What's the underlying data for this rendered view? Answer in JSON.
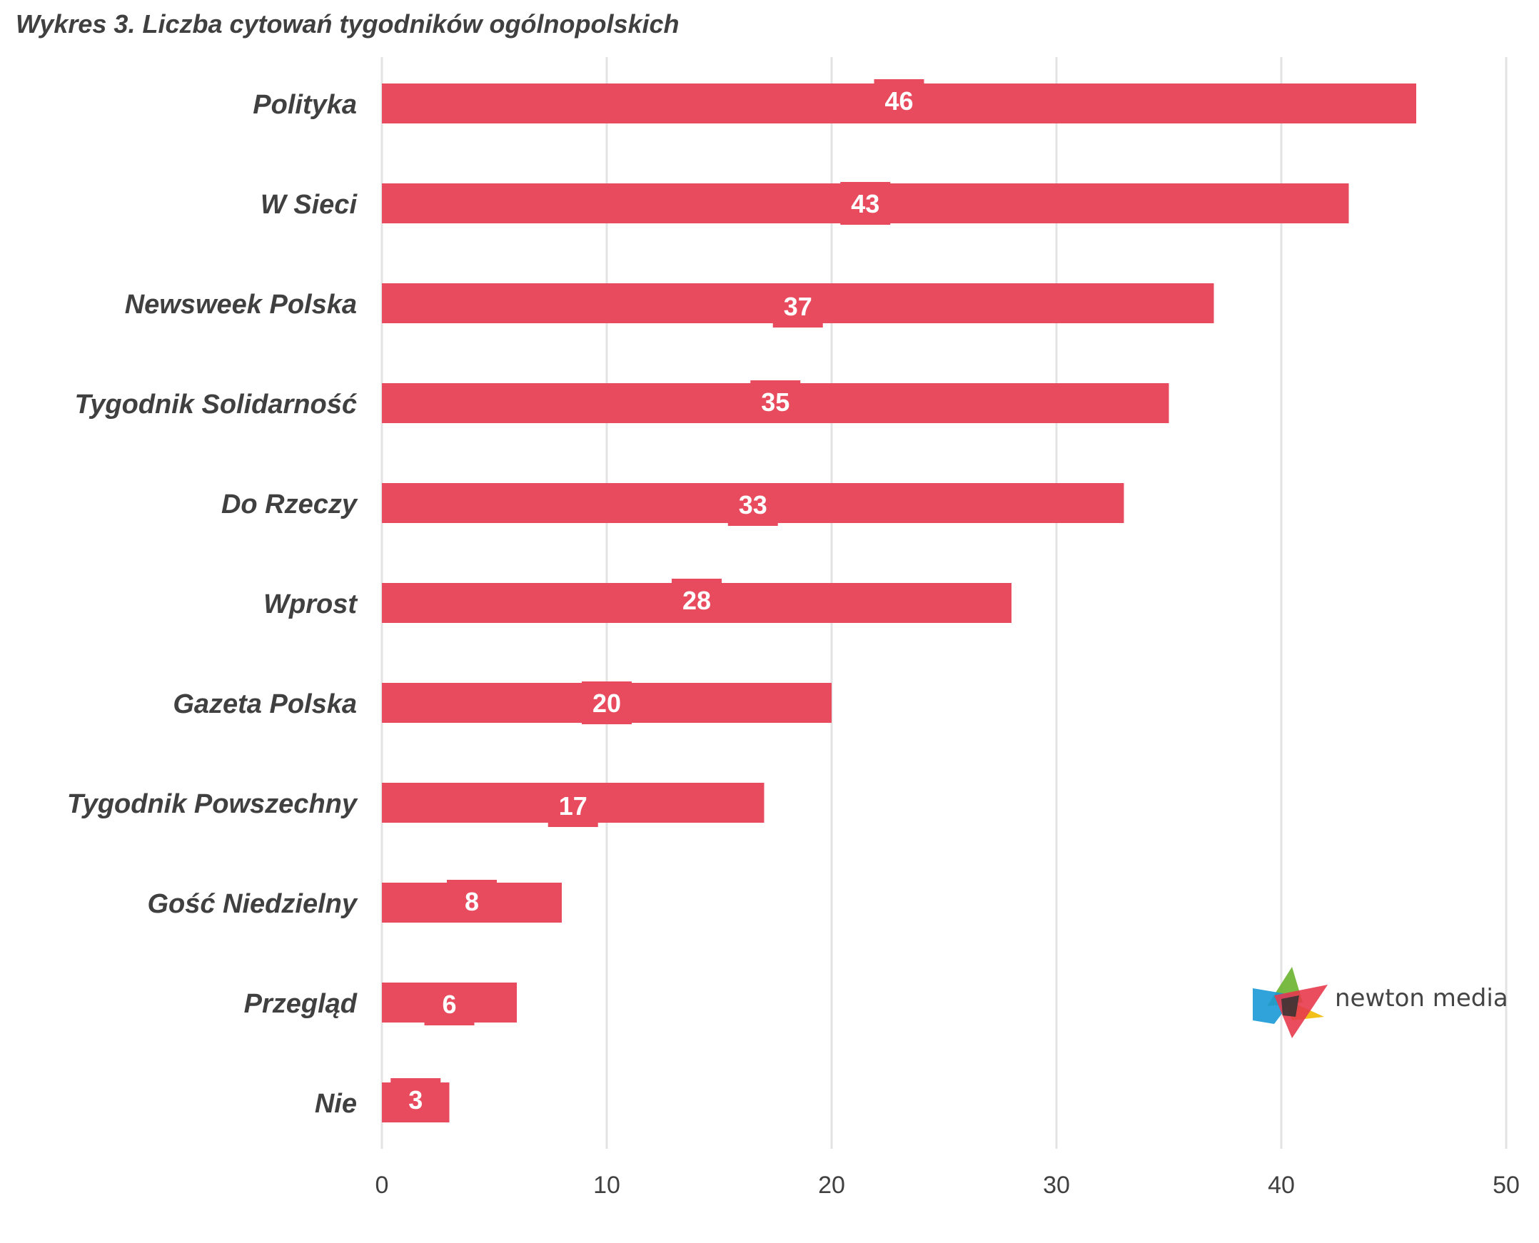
{
  "chart_data": {
    "type": "bar",
    "orientation": "horizontal",
    "title": "Wykres 3. Liczba cytowań tygodników ogólnopolskich",
    "categories": [
      "Polityka",
      "W Sieci",
      "Newsweek Polska",
      "Tygodnik Solidarność",
      "Do Rzeczy",
      "Wprost",
      "Gazeta Polska",
      "Tygodnik Powszechny",
      "Gość Niedzielny",
      "Przegląd",
      "Nie"
    ],
    "values": [
      46,
      43,
      37,
      35,
      33,
      28,
      20,
      17,
      8,
      6,
      3
    ],
    "xlim": [
      0,
      50
    ],
    "xticks": [
      0,
      10,
      20,
      30,
      40,
      50
    ],
    "grid": "vertical",
    "legend": "none",
    "bar_color": "#e84b5e",
    "label_color": "#ffffff"
  },
  "logo": {
    "text": "newton media",
    "colors": [
      "#6ab42d",
      "#1a9ad6",
      "#f2b800",
      "#e73a4c",
      "#333333"
    ]
  }
}
